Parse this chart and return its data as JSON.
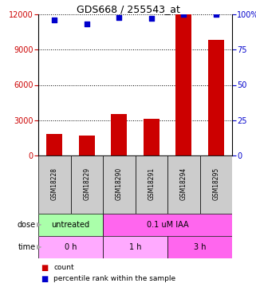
{
  "title": "GDS668 / 255543_at",
  "samples": [
    "GSM18228",
    "GSM18229",
    "GSM18290",
    "GSM18291",
    "GSM18294",
    "GSM18295"
  ],
  "bar_values": [
    1800,
    1700,
    3500,
    3100,
    12000,
    9800
  ],
  "dot_values": [
    96,
    93,
    98,
    97,
    100,
    100
  ],
  "bar_color": "#cc0000",
  "dot_color": "#0000cc",
  "left_ylim": [
    0,
    12000
  ],
  "right_ylim": [
    0,
    100
  ],
  "left_yticks": [
    0,
    3000,
    6000,
    9000,
    12000
  ],
  "right_yticks": [
    0,
    25,
    50,
    75,
    100
  ],
  "right_yticklabels": [
    "0",
    "25",
    "50",
    "75",
    "100%"
  ],
  "dose_labels": [
    {
      "text": "untreated",
      "start": 0,
      "end": 2,
      "color": "#aaffaa"
    },
    {
      "text": "0.1 uM IAA",
      "start": 2,
      "end": 6,
      "color": "#ff66ee"
    }
  ],
  "time_labels": [
    {
      "text": "0 h",
      "start": 0,
      "end": 2,
      "color": "#ffaaff"
    },
    {
      "text": "1 h",
      "start": 2,
      "end": 4,
      "color": "#ffaaff"
    },
    {
      "text": "3 h",
      "start": 4,
      "end": 6,
      "color": "#ff66ee"
    }
  ],
  "dose_row_label": "dose",
  "time_row_label": "time",
  "legend_items": [
    {
      "color": "#cc0000",
      "label": "count"
    },
    {
      "color": "#0000cc",
      "label": "percentile rank within the sample"
    }
  ],
  "bg_color": "#ffffff",
  "tick_label_color_left": "#cc0000",
  "tick_label_color_right": "#0000cc",
  "sample_bg_color": "#cccccc",
  "arrow_color": "#aaaaaa"
}
